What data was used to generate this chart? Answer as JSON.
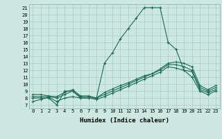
{
  "xlabel": "Humidex (Indice chaleur)",
  "bg_color": "#cce8e0",
  "line_color": "#1a6b5a",
  "grid_color": "#aaccc4",
  "xlim": [
    -0.5,
    23.5
  ],
  "ylim": [
    6.5,
    21.5
  ],
  "xticks": [
    0,
    1,
    2,
    3,
    4,
    5,
    6,
    7,
    8,
    9,
    10,
    11,
    12,
    13,
    14,
    15,
    16,
    17,
    18,
    19,
    20,
    21,
    22,
    23
  ],
  "yticks": [
    7,
    8,
    9,
    10,
    11,
    12,
    13,
    14,
    15,
    16,
    17,
    18,
    19,
    20,
    21
  ],
  "line1_x": [
    0,
    1,
    2,
    3,
    4,
    5,
    6,
    7,
    8,
    9,
    10,
    11,
    12,
    13,
    14,
    15,
    16,
    17,
    18,
    19,
    20,
    21,
    22,
    23
  ],
  "line1_y": [
    8,
    8,
    8,
    7,
    9,
    9,
    8,
    8,
    8,
    13,
    14.5,
    16.5,
    18,
    19.5,
    21,
    21,
    21,
    16,
    15,
    12,
    11,
    9,
    8.5,
    9
  ],
  "line2_x": [
    0,
    1,
    2,
    3,
    4,
    5,
    6,
    7,
    8,
    9,
    10,
    11,
    12,
    13,
    14,
    15,
    16,
    17,
    18,
    19,
    20,
    21,
    22,
    23
  ],
  "line2_y": [
    7.5,
    7.8,
    8.1,
    7.5,
    8.0,
    8.2,
    8.0,
    8.0,
    7.8,
    8.2,
    8.7,
    9.2,
    9.7,
    10.2,
    10.7,
    11.2,
    11.7,
    12.5,
    12.3,
    12.0,
    11.8,
    9.2,
    8.8,
    9.2
  ],
  "line3_x": [
    0,
    1,
    2,
    3,
    4,
    5,
    6,
    7,
    8,
    9,
    10,
    11,
    12,
    13,
    14,
    15,
    16,
    17,
    18,
    19,
    20,
    21,
    22,
    23
  ],
  "line3_y": [
    8.2,
    8.2,
    8.2,
    8.0,
    8.5,
    9.0,
    8.2,
    8.2,
    8.0,
    8.5,
    9.0,
    9.5,
    10.0,
    10.5,
    11.0,
    11.5,
    12.0,
    12.8,
    12.8,
    12.5,
    12.0,
    9.5,
    9.0,
    9.5
  ],
  "line4_x": [
    0,
    1,
    2,
    3,
    4,
    5,
    6,
    7,
    8,
    9,
    10,
    11,
    12,
    13,
    14,
    15,
    16,
    17,
    18,
    19,
    20,
    21,
    22,
    23
  ],
  "line4_y": [
    8.5,
    8.5,
    8.3,
    8.2,
    8.8,
    9.2,
    8.3,
    8.3,
    8.0,
    8.8,
    9.3,
    9.8,
    10.2,
    10.7,
    11.2,
    11.5,
    12.2,
    13.0,
    13.2,
    13.0,
    12.5,
    9.8,
    9.2,
    9.8
  ]
}
